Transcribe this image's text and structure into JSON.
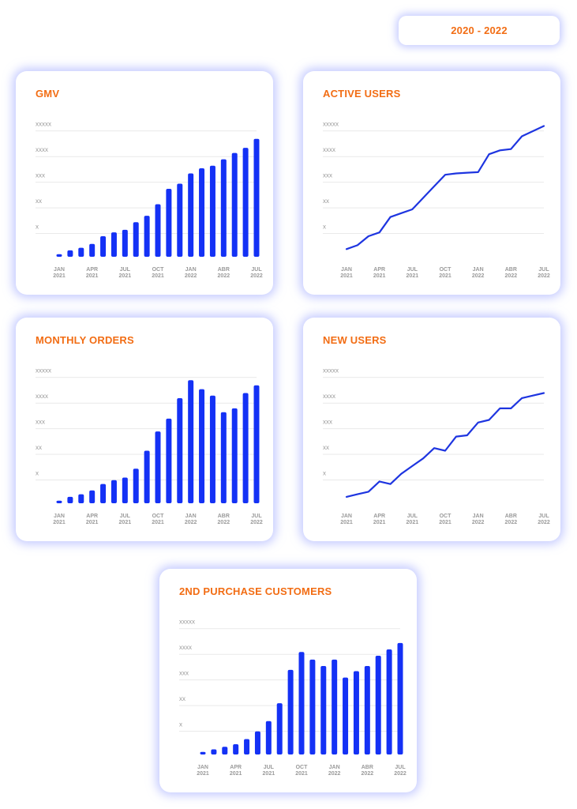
{
  "header": {
    "range_label": "2020 - 2022"
  },
  "chart_data": [
    {
      "id": "gmv",
      "type": "bar",
      "title": "GMV",
      "y_ticks": [
        "x",
        "xx",
        "xxx",
        "xxxx",
        "xxxxx"
      ],
      "ylim": [
        0,
        5.3
      ],
      "x_ticks": [
        {
          "index": 0,
          "line1": "JAN",
          "line2": "2021"
        },
        {
          "index": 3,
          "line1": "APR",
          "line2": "2021"
        },
        {
          "index": 6,
          "line1": "JUL",
          "line2": "2021"
        },
        {
          "index": 9,
          "line1": "OCT",
          "line2": "2021"
        },
        {
          "index": 12,
          "line1": "JAN",
          "line2": "2022"
        },
        {
          "index": 15,
          "line1": "ABR",
          "line2": "2022"
        },
        {
          "index": 18,
          "line1": "JUL",
          "line2": "2022"
        }
      ],
      "values": [
        0.1,
        0.25,
        0.35,
        0.5,
        0.8,
        0.95,
        1.05,
        1.35,
        1.6,
        2.05,
        2.65,
        2.85,
        3.25,
        3.45,
        3.55,
        3.8,
        4.05,
        4.25,
        4.6
      ]
    },
    {
      "id": "active-users",
      "type": "line",
      "title": "ACTIVE USERS",
      "y_ticks": [
        "x",
        "xx",
        "xxx",
        "xxxx",
        "xxxxx"
      ],
      "ylim": [
        0,
        5.3
      ],
      "x_ticks": [
        {
          "index": 0,
          "line1": "JAN",
          "line2": "2021"
        },
        {
          "index": 3,
          "line1": "APR",
          "line2": "2021"
        },
        {
          "index": 6,
          "line1": "JUL",
          "line2": "2021"
        },
        {
          "index": 9,
          "line1": "OCT",
          "line2": "2021"
        },
        {
          "index": 12,
          "line1": "JAN",
          "line2": "2022"
        },
        {
          "index": 15,
          "line1": "ABR",
          "line2": "2022"
        },
        {
          "index": 18,
          "line1": "JUL",
          "line2": "2022"
        }
      ],
      "values": [
        0.3,
        0.45,
        0.8,
        0.95,
        1.55,
        1.7,
        1.85,
        2.3,
        2.75,
        3.2,
        3.25,
        3.28,
        3.3,
        4.0,
        4.15,
        4.2,
        4.7,
        4.9,
        5.1
      ]
    },
    {
      "id": "monthly-orders",
      "type": "bar",
      "title": "MONTHLY ORDERS",
      "y_ticks": [
        "x",
        "xx",
        "xxx",
        "xxxx",
        "xxxxx"
      ],
      "ylim": [
        0,
        5.3
      ],
      "x_ticks": [
        {
          "index": 0,
          "line1": "JAN",
          "line2": "2021"
        },
        {
          "index": 3,
          "line1": "APR",
          "line2": "2021"
        },
        {
          "index": 6,
          "line1": "JUL",
          "line2": "2021"
        },
        {
          "index": 9,
          "line1": "OCT",
          "line2": "2021"
        },
        {
          "index": 12,
          "line1": "JAN",
          "line2": "2022"
        },
        {
          "index": 15,
          "line1": "ABR",
          "line2": "2022"
        },
        {
          "index": 18,
          "line1": "JUL",
          "line2": "2022"
        }
      ],
      "values": [
        0.1,
        0.25,
        0.35,
        0.5,
        0.75,
        0.9,
        1.0,
        1.35,
        2.05,
        2.8,
        3.3,
        4.1,
        4.8,
        4.45,
        4.2,
        3.55,
        3.7,
        4.3,
        4.6
      ]
    },
    {
      "id": "new-users",
      "type": "line",
      "title": "NEW USERS",
      "y_ticks": [
        "x",
        "xx",
        "xxx",
        "xxxx",
        "xxxxx"
      ],
      "ylim": [
        0,
        5.3
      ],
      "x_ticks": [
        {
          "index": 0,
          "line1": "JAN",
          "line2": "2021"
        },
        {
          "index": 3,
          "line1": "APR",
          "line2": "2021"
        },
        {
          "index": 6,
          "line1": "JUL",
          "line2": "2021"
        },
        {
          "index": 9,
          "line1": "OCT",
          "line2": "2021"
        },
        {
          "index": 12,
          "line1": "JAN",
          "line2": "2022"
        },
        {
          "index": 15,
          "line1": "ABR",
          "line2": "2022"
        },
        {
          "index": 18,
          "line1": "JUL",
          "line2": "2022"
        }
      ],
      "values": [
        0.25,
        0.35,
        0.45,
        0.85,
        0.75,
        1.15,
        1.45,
        1.75,
        2.15,
        2.05,
        2.6,
        2.65,
        3.15,
        3.25,
        3.7,
        3.7,
        4.1,
        4.2,
        4.3
      ]
    },
    {
      "id": "second-purchase-customers",
      "type": "bar",
      "title": "2ND PURCHASE CUSTOMERS",
      "y_ticks": [
        "x",
        "xx",
        "xxx",
        "xxxx",
        "xxxxx"
      ],
      "ylim": [
        0,
        5.3
      ],
      "x_ticks": [
        {
          "index": 0,
          "line1": "JAN",
          "line2": "2021"
        },
        {
          "index": 3,
          "line1": "APR",
          "line2": "2021"
        },
        {
          "index": 6,
          "line1": "JUL",
          "line2": "2021"
        },
        {
          "index": 9,
          "line1": "OCT",
          "line2": "2021"
        },
        {
          "index": 12,
          "line1": "JAN",
          "line2": "2022"
        },
        {
          "index": 15,
          "line1": "ABR",
          "line2": "2022"
        },
        {
          "index": 18,
          "line1": "JUL",
          "line2": "2022"
        }
      ],
      "values": [
        0.1,
        0.2,
        0.3,
        0.4,
        0.6,
        0.9,
        1.3,
        2.0,
        3.3,
        4.0,
        3.7,
        3.45,
        3.7,
        3.0,
        3.25,
        3.45,
        3.85,
        4.1,
        4.35
      ]
    }
  ],
  "style": {
    "accent": "#f26d14",
    "bar_color": "#1431f5",
    "line_color": "#1e35e0"
  }
}
